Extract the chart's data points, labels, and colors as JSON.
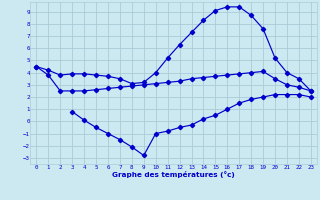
{
  "xlabel": "Graphe des températures (°c)",
  "background_color": "#cce8f0",
  "grid_color": "#aaccd8",
  "line_color": "#0000cc",
  "xlim": [
    -0.5,
    23.5
  ],
  "ylim": [
    -3.5,
    9.8
  ],
  "xticks": [
    0,
    1,
    2,
    3,
    4,
    5,
    6,
    7,
    8,
    9,
    10,
    11,
    12,
    13,
    14,
    15,
    16,
    17,
    18,
    19,
    20,
    21,
    22,
    23
  ],
  "yticks": [
    -3,
    -2,
    -1,
    0,
    1,
    2,
    3,
    4,
    5,
    6,
    7,
    8,
    9
  ],
  "line1_x": [
    0,
    1,
    2,
    3,
    4,
    5,
    6,
    7,
    8,
    9,
    10,
    11,
    12,
    13,
    14,
    15,
    16,
    17,
    18,
    19,
    20,
    21,
    22,
    23
  ],
  "line1_y": [
    4.5,
    4.2,
    3.8,
    3.9,
    3.9,
    3.8,
    3.7,
    3.5,
    3.1,
    3.2,
    4.0,
    5.2,
    6.3,
    7.3,
    8.3,
    9.1,
    9.4,
    9.4,
    8.7,
    7.6,
    5.2,
    4.0,
    3.5,
    2.5
  ],
  "line2_x": [
    0,
    1,
    2,
    3,
    4,
    5,
    6,
    7,
    8,
    9,
    10,
    11,
    12,
    13,
    14,
    15,
    16,
    17,
    18,
    19,
    20,
    21,
    22,
    23
  ],
  "line2_y": [
    4.5,
    3.8,
    2.5,
    2.5,
    2.5,
    2.6,
    2.7,
    2.8,
    2.9,
    3.0,
    3.1,
    3.2,
    3.3,
    3.5,
    3.6,
    3.7,
    3.8,
    3.9,
    4.0,
    4.1,
    3.5,
    3.0,
    2.8,
    2.5
  ],
  "line3_x": [
    3,
    4,
    5,
    6,
    7,
    8,
    9,
    10,
    11,
    12,
    13,
    14,
    15,
    16,
    17,
    18,
    19,
    20,
    21,
    22,
    23
  ],
  "line3_y": [
    0.8,
    0.1,
    -0.5,
    -1.0,
    -1.5,
    -2.1,
    -2.8,
    -1.0,
    -0.8,
    -0.5,
    -0.3,
    0.2,
    0.5,
    1.0,
    1.5,
    1.8,
    2.0,
    2.2,
    2.2,
    2.2,
    2.0
  ]
}
